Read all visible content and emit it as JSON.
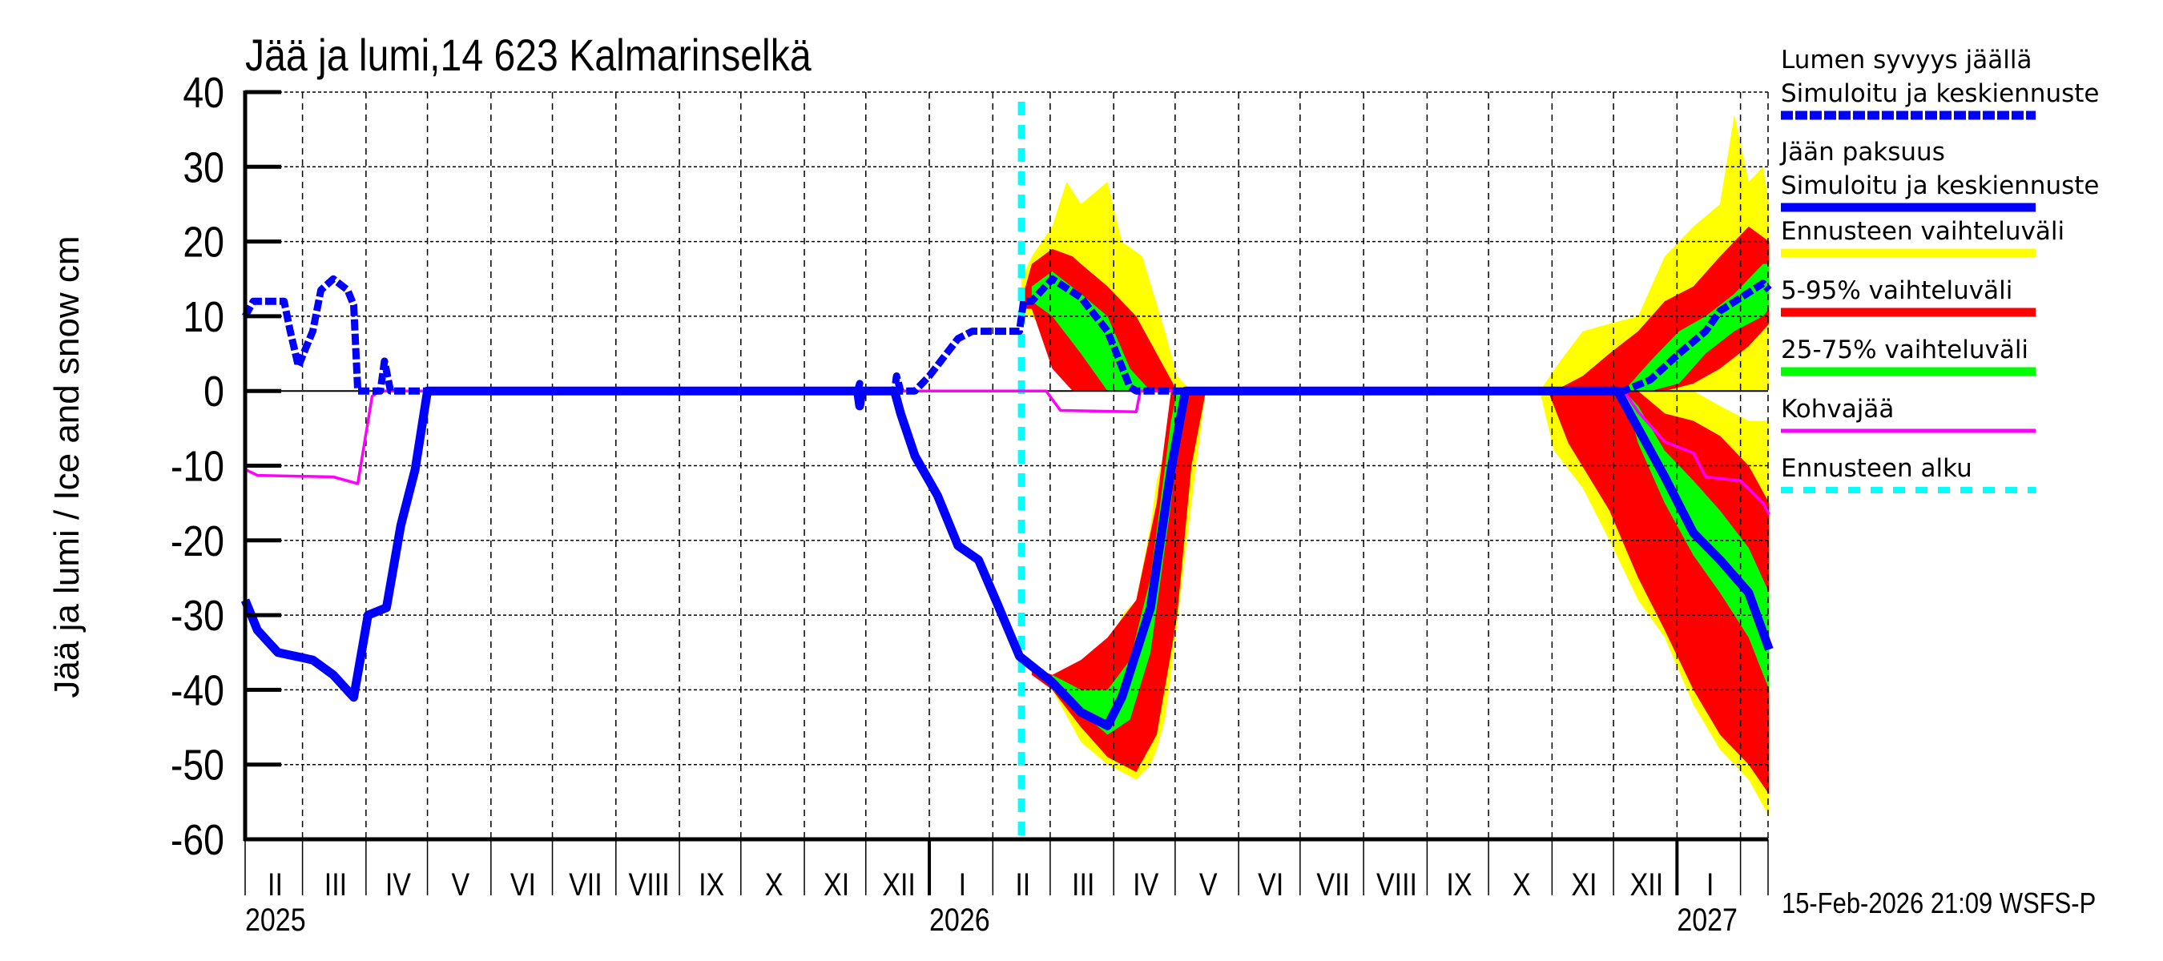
{
  "chart_data": {
    "type": "area",
    "title": "Jää ja lumi,14 623 Kalmarinselkä",
    "ylabel": "Jää ja lumi / Ice and snow    cm",
    "xlabel": "",
    "xlim": [
      "2025-02-01",
      "2027-02-15"
    ],
    "ylim": [
      -60,
      40
    ],
    "yticks": [
      40,
      30,
      20,
      10,
      0,
      -10,
      -20,
      -30,
      -40,
      -50,
      -60
    ],
    "month_labels": [
      "II",
      "III",
      "IV",
      "V",
      "VI",
      "VII",
      "VIII",
      "IX",
      "X",
      "XI",
      "XII",
      "I",
      "II",
      "III",
      "IV",
      "V",
      "VI",
      "VII",
      "VIII",
      "IX",
      "X",
      "XI",
      "XII",
      "I"
    ],
    "year_labels": [
      "2025",
      "2026",
      "2027"
    ],
    "grid": true,
    "legend_placement": "right",
    "forecast_start": "2026-02-15",
    "footer": "15-Feb-2026 21:09 WSFS-P",
    "colors": {
      "snow": "#0000ff",
      "ice": "#0000ff",
      "range": "#ffff00",
      "p5_95": "#ff0000",
      "p25_75": "#00ff00",
      "kohva": "#ff00ff",
      "forecast": "#00ffff"
    },
    "legend": [
      {
        "line1": "Lumen syvyys jäällä",
        "line2": "Simuloitu ja keskiennuste",
        "key": "snow",
        "style": "dashed"
      },
      {
        "line1": "Jään paksuus",
        "line2": "Simuloitu ja keskiennuste",
        "key": "ice",
        "style": "solid"
      },
      {
        "line1": "Ennusteen vaihteluväli",
        "key": "range",
        "style": "band"
      },
      {
        "line1": "5-95% vaihteluväli",
        "key": "p5_95",
        "style": "band"
      },
      {
        "line1": "25-75% vaihteluväli",
        "key": "p25_75",
        "style": "band"
      },
      {
        "line1": "Kohvajää",
        "key": "kohva",
        "style": "thin"
      },
      {
        "line1": "Ennusteen alku",
        "key": "forecast",
        "style": "dotted"
      }
    ],
    "bands": {
      "range": [
        [
          [
            "2026-02-15",
            10,
            15
          ],
          [
            "2026-02-20",
            10,
            18
          ],
          [
            "2026-03-02",
            7,
            22
          ],
          [
            "2026-03-09",
            5,
            28
          ],
          [
            "2026-03-16",
            3,
            25
          ],
          [
            "2026-03-29",
            0,
            28
          ],
          [
            "2026-04-05",
            0,
            20
          ],
          [
            "2026-04-15",
            0,
            18
          ],
          [
            "2026-04-26",
            0,
            8
          ],
          [
            "2026-05-02",
            0,
            2
          ],
          [
            "2026-05-09",
            0,
            0
          ]
        ],
        [
          [
            "2026-02-15",
            -36,
            -36
          ],
          [
            "2026-03-02",
            -40,
            -38
          ],
          [
            "2026-03-16",
            -47,
            -37
          ],
          [
            "2026-03-29",
            -50,
            -37
          ],
          [
            "2026-04-05",
            -51,
            -30
          ],
          [
            "2026-04-12",
            -52,
            -28
          ],
          [
            "2026-04-19",
            -50,
            -18
          ],
          [
            "2026-04-22",
            -48,
            -12
          ],
          [
            "2026-04-26",
            -44,
            -8
          ],
          [
            "2026-04-29",
            -38,
            0
          ],
          [
            "2026-05-09",
            -15,
            0
          ],
          [
            "2026-05-16",
            0,
            0
          ]
        ],
        [
          [
            "2026-10-26",
            0,
            0
          ],
          [
            "2026-11-05",
            0,
            4
          ],
          [
            "2026-11-16",
            0,
            8
          ],
          [
            "2026-11-29",
            0,
            9
          ],
          [
            "2026-12-13",
            0,
            10
          ],
          [
            "2026-12-26",
            0,
            18
          ],
          [
            "2027-01-09",
            0,
            22
          ],
          [
            "2027-01-22",
            0,
            25
          ],
          [
            "2027-01-29",
            0,
            37
          ],
          [
            "2027-02-05",
            0,
            28
          ],
          [
            "2027-02-12",
            0,
            30
          ],
          [
            "2027-02-15",
            0,
            25
          ]
        ],
        [
          [
            "2026-10-26",
            0,
            0
          ],
          [
            "2026-11-02",
            -8,
            0
          ],
          [
            "2026-11-16",
            -13,
            0
          ],
          [
            "2026-11-29",
            -20,
            0
          ],
          [
            "2026-12-13",
            -28,
            0
          ],
          [
            "2026-12-26",
            -33,
            0
          ],
          [
            "2027-01-09",
            -42,
            0
          ],
          [
            "2027-01-22",
            -48,
            -2
          ],
          [
            "2027-02-05",
            -52,
            -4
          ],
          [
            "2027-02-15",
            -57,
            -4
          ]
        ]
      ],
      "p5_95": [
        [
          [
            "2026-02-15",
            11,
            12
          ],
          [
            "2026-02-20",
            11,
            17
          ],
          [
            "2026-03-02",
            3,
            19
          ],
          [
            "2026-03-12",
            0,
            18
          ],
          [
            "2026-03-16",
            0,
            17
          ],
          [
            "2026-03-29",
            0,
            14
          ],
          [
            "2026-04-12",
            0,
            10
          ],
          [
            "2026-04-26",
            0,
            3
          ],
          [
            "2026-05-02",
            0,
            0
          ]
        ],
        [
          [
            "2026-02-20",
            -38,
            -37
          ],
          [
            "2026-03-02",
            -40,
            -38
          ],
          [
            "2026-03-16",
            -45,
            -36
          ],
          [
            "2026-03-29",
            -49,
            -33
          ],
          [
            "2026-04-12",
            -51,
            -28
          ],
          [
            "2026-04-22",
            -46,
            -15
          ],
          [
            "2026-04-29",
            -35,
            0
          ],
          [
            "2026-05-02",
            -30,
            0
          ],
          [
            "2026-05-09",
            -10,
            0
          ],
          [
            "2026-05-16",
            0,
            0
          ]
        ],
        [
          [
            "2026-11-02",
            0,
            0
          ],
          [
            "2026-11-16",
            0,
            2
          ],
          [
            "2026-11-29",
            0,
            5
          ],
          [
            "2026-12-13",
            0,
            8
          ],
          [
            "2026-12-26",
            0,
            12
          ],
          [
            "2027-01-09",
            1,
            14
          ],
          [
            "2027-01-22",
            3,
            18
          ],
          [
            "2027-02-05",
            6,
            22
          ],
          [
            "2027-02-15",
            9,
            20
          ]
        ],
        [
          [
            "2026-10-30",
            0,
            0
          ],
          [
            "2026-11-09",
            -7,
            0
          ],
          [
            "2026-11-29",
            -16,
            0
          ],
          [
            "2026-12-13",
            -25,
            0
          ],
          [
            "2026-12-26",
            -32,
            -3
          ],
          [
            "2027-01-09",
            -40,
            -4
          ],
          [
            "2027-01-22",
            -46,
            -6
          ],
          [
            "2027-02-05",
            -50,
            -10
          ],
          [
            "2027-02-15",
            -54,
            -15
          ]
        ]
      ],
      "p25_75": [
        [
          [
            "2026-02-20",
            12,
            14
          ],
          [
            "2026-03-02",
            10,
            16
          ],
          [
            "2026-03-16",
            5,
            13
          ],
          [
            "2026-03-29",
            0,
            10
          ],
          [
            "2026-04-09",
            0,
            3
          ],
          [
            "2026-04-19",
            0,
            0
          ]
        ],
        [
          [
            "2026-03-02",
            -40,
            -38
          ],
          [
            "2026-03-16",
            -43,
            -40
          ],
          [
            "2026-03-29",
            -46,
            -40
          ],
          [
            "2026-04-09",
            -44,
            -36
          ],
          [
            "2026-04-19",
            -35,
            -25
          ],
          [
            "2026-04-29",
            -15,
            -4
          ],
          [
            "2026-05-02",
            -8,
            0
          ],
          [
            "2026-05-06",
            0,
            0
          ]
        ],
        [
          [
            "2026-12-06",
            0,
            0
          ],
          [
            "2026-12-19",
            0,
            4
          ],
          [
            "2027-01-02",
            1,
            8
          ],
          [
            "2027-01-15",
            5,
            10
          ],
          [
            "2027-01-29",
            8,
            13
          ],
          [
            "2027-02-12",
            10,
            17
          ],
          [
            "2027-02-15",
            11,
            17
          ]
        ],
        [
          [
            "2026-12-06",
            0,
            0
          ],
          [
            "2026-12-13",
            -7,
            -2
          ],
          [
            "2026-12-26",
            -15,
            -8
          ],
          [
            "2027-01-09",
            -22,
            -12
          ],
          [
            "2027-01-22",
            -27,
            -16
          ],
          [
            "2027-02-05",
            -33,
            -21
          ],
          [
            "2027-02-15",
            -40,
            -27
          ]
        ]
      ]
    },
    "series": [
      {
        "key": "snow",
        "name": "Lumen syvyys jäällä",
        "points": [
          [
            "2025-02-01",
            10
          ],
          [
            "2025-02-05",
            12
          ],
          [
            "2025-02-20",
            12
          ],
          [
            "2025-02-23",
            8
          ],
          [
            "2025-02-27",
            3.3
          ],
          [
            "2025-03-03",
            6
          ],
          [
            "2025-03-06",
            8
          ],
          [
            "2025-03-10",
            13.5
          ],
          [
            "2025-03-16",
            15
          ],
          [
            "2025-03-23",
            13.5
          ],
          [
            "2025-03-26",
            11.5
          ],
          [
            "2025-03-28",
            0
          ],
          [
            "2025-04-08",
            0
          ],
          [
            "2025-04-10",
            4
          ],
          [
            "2025-04-13",
            0
          ],
          [
            "2025-11-27",
            0
          ],
          [
            "2025-11-28",
            1
          ],
          [
            "2025-11-29",
            0
          ],
          [
            "2025-12-15",
            0
          ],
          [
            "2025-12-16",
            2
          ],
          [
            "2025-12-18",
            0
          ],
          [
            "2025-12-25",
            0
          ],
          [
            "2026-01-01",
            2
          ],
          [
            "2026-01-15",
            7
          ],
          [
            "2026-01-22",
            8
          ],
          [
            "2026-02-14",
            8
          ],
          [
            "2026-02-16",
            12
          ],
          [
            "2026-02-20",
            12
          ],
          [
            "2026-03-02",
            15
          ],
          [
            "2026-03-16",
            12.5
          ],
          [
            "2026-03-29",
            8
          ],
          [
            "2026-04-09",
            0.5
          ],
          [
            "2026-04-12",
            0
          ],
          [
            "2026-12-06",
            0
          ],
          [
            "2026-12-19",
            1.5
          ],
          [
            "2027-01-02",
            5
          ],
          [
            "2027-01-15",
            8
          ],
          [
            "2027-01-22",
            10.7
          ],
          [
            "2027-02-12",
            14.4
          ],
          [
            "2027-02-15",
            13.5
          ]
        ]
      },
      {
        "key": "ice",
        "name": "Jään paksuus",
        "points": [
          [
            "2025-02-01",
            -28
          ],
          [
            "2025-02-07",
            -32
          ],
          [
            "2025-02-17",
            -35
          ],
          [
            "2025-03-06",
            -36
          ],
          [
            "2025-03-16",
            -38
          ],
          [
            "2025-03-26",
            -41
          ],
          [
            "2025-04-02",
            -30
          ],
          [
            "2025-04-11",
            -29
          ],
          [
            "2025-04-18",
            -18
          ],
          [
            "2025-04-25",
            -10.5
          ],
          [
            "2025-05-01",
            0
          ],
          [
            "2025-11-27",
            0
          ],
          [
            "2025-11-28",
            -2
          ],
          [
            "2025-11-29",
            0
          ],
          [
            "2025-12-15",
            0
          ],
          [
            "2025-12-18",
            -3
          ],
          [
            "2025-12-25",
            -8.7
          ],
          [
            "2026-01-05",
            -14
          ],
          [
            "2026-01-15",
            -20.7
          ],
          [
            "2026-01-25",
            -22.6
          ],
          [
            "2026-02-04",
            -29
          ],
          [
            "2026-02-14",
            -35.5
          ],
          [
            "2026-03-02",
            -39
          ],
          [
            "2026-03-16",
            -43
          ],
          [
            "2026-03-29",
            -44.8
          ],
          [
            "2026-04-05",
            -41
          ],
          [
            "2026-04-19",
            -29
          ],
          [
            "2026-04-29",
            -10.5
          ],
          [
            "2026-05-06",
            0
          ],
          [
            "2026-12-03",
            0
          ],
          [
            "2026-12-13",
            -5
          ],
          [
            "2026-12-26",
            -11.5
          ],
          [
            "2027-01-09",
            -19
          ],
          [
            "2027-01-22",
            -22.6
          ],
          [
            "2027-02-05",
            -27
          ],
          [
            "2027-02-15",
            -34.6
          ]
        ]
      },
      {
        "key": "kohva",
        "name": "Kohvajää",
        "points": [
          [
            "2025-02-01",
            -10.5
          ],
          [
            "2025-02-07",
            -11.3
          ],
          [
            "2025-03-16",
            -11.5
          ],
          [
            "2025-03-28",
            -12.4
          ],
          [
            "2025-04-04",
            -0.7
          ],
          [
            "2025-04-08",
            0
          ],
          [
            "2026-02-27",
            0
          ],
          [
            "2026-03-06",
            -2.6
          ],
          [
            "2026-04-12",
            -2.8
          ],
          [
            "2026-04-14",
            0
          ],
          [
            "2026-12-06",
            0
          ],
          [
            "2026-12-13",
            -2.8
          ],
          [
            "2026-12-26",
            -6.8
          ],
          [
            "2027-01-09",
            -8.3
          ],
          [
            "2027-01-15",
            -11.5
          ],
          [
            "2027-02-01",
            -12
          ],
          [
            "2027-02-12",
            -15
          ],
          [
            "2027-02-15",
            -16.5
          ]
        ]
      }
    ]
  }
}
